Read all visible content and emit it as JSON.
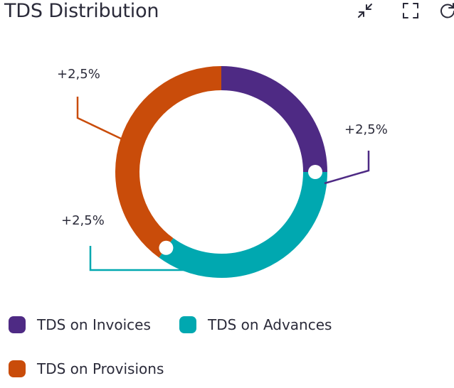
{
  "header": {
    "title": "TDS Distribution"
  },
  "toolbar": {
    "collapse_icon": "collapse-arrows-icon",
    "fullscreen_icon": "fullscreen-icon",
    "refresh_icon": "refresh-icon"
  },
  "colors": {
    "purple": "#4e2a84",
    "teal": "#00a8b0",
    "orange": "#c94c0a"
  },
  "chart_data": {
    "type": "pie",
    "variant": "donut",
    "title": "TDS Distribution",
    "categories": [
      "TDS on Invoices",
      "TDS on Advances",
      "TDS on Provisions"
    ],
    "values": [
      25,
      35,
      40
    ],
    "colors": [
      "#4e2a84",
      "#00a8b0",
      "#c94c0a"
    ],
    "data_labels": [
      "+2,5%",
      "+2,5%",
      "+2,5%"
    ],
    "legend_position": "bottom"
  },
  "legend": [
    {
      "label": "TDS on Invoices",
      "color": "#4e2a84"
    },
    {
      "label": "TDS on Advances",
      "color": "#00a8b0"
    },
    {
      "label": "TDS on Provisions",
      "color": "#c94c0a"
    }
  ]
}
